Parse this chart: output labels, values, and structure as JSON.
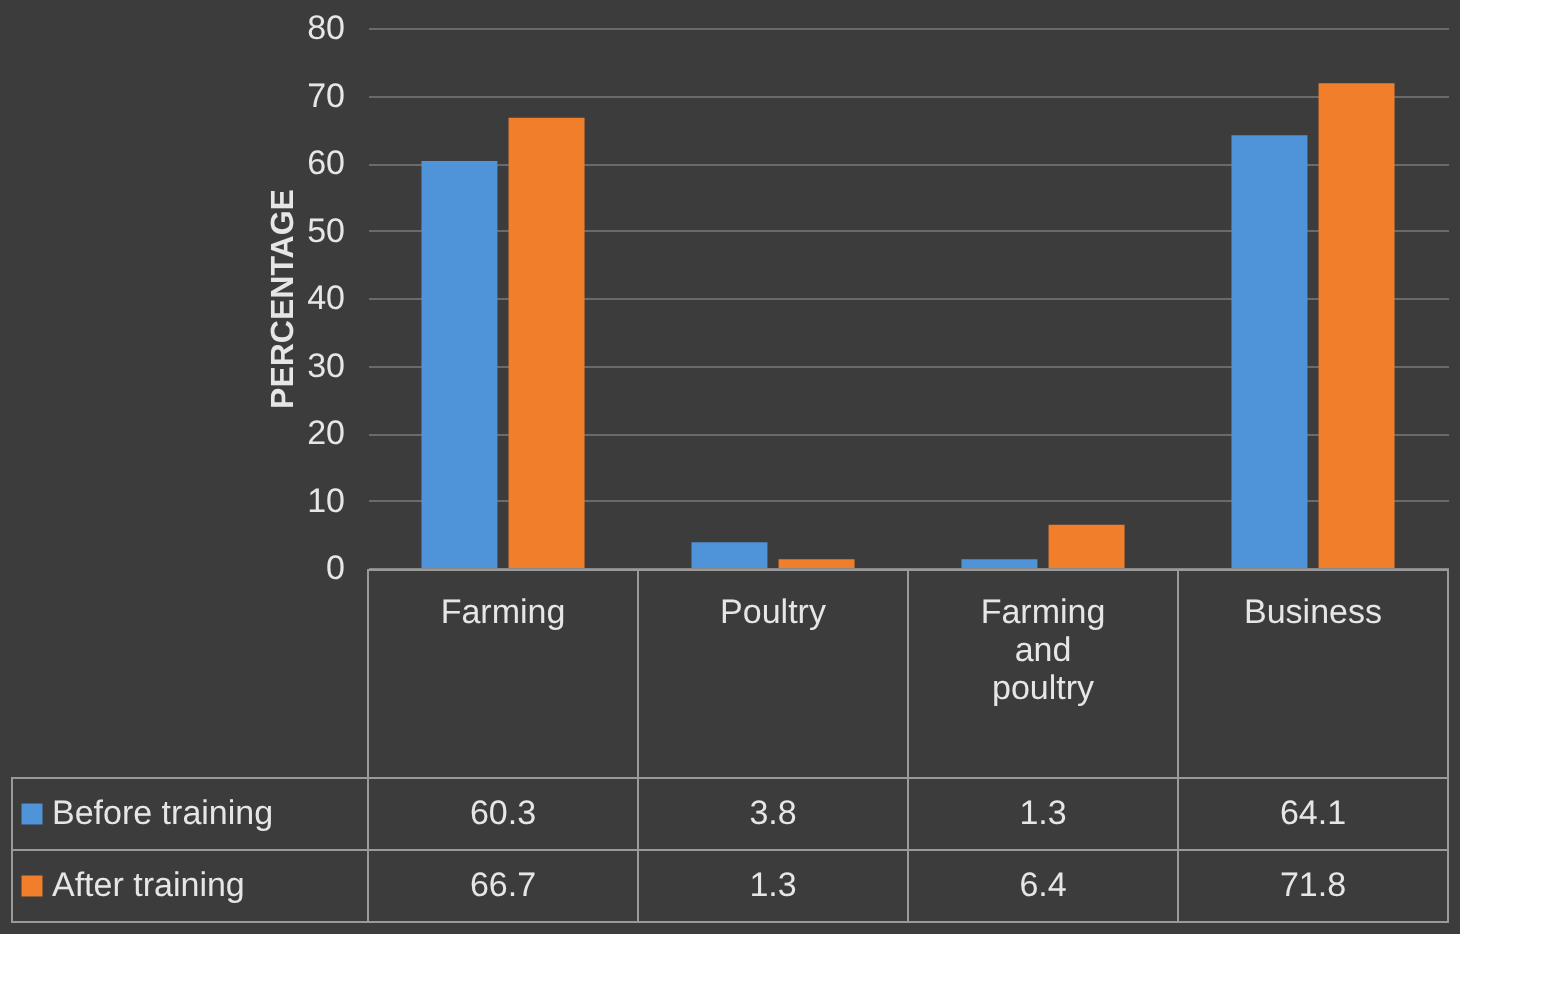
{
  "chart_data": {
    "type": "bar",
    "ylabel": "PERCENTAGE",
    "categories": [
      "Farming",
      "Poultry",
      "Farming and poultry",
      "Business"
    ],
    "series": [
      {
        "name": "Before training",
        "color": "#4f93d8",
        "values": [
          60.3,
          3.8,
          1.3,
          64.1
        ]
      },
      {
        "name": "After training",
        "color": "#f07e2a",
        "values": [
          66.7,
          1.3,
          6.4,
          71.8
        ]
      }
    ],
    "ylim": [
      0,
      80
    ],
    "yticks": [
      0,
      10,
      20,
      30,
      40,
      50,
      60,
      70,
      80
    ],
    "grid": "y",
    "data_labels": true,
    "legend": "bottom"
  }
}
